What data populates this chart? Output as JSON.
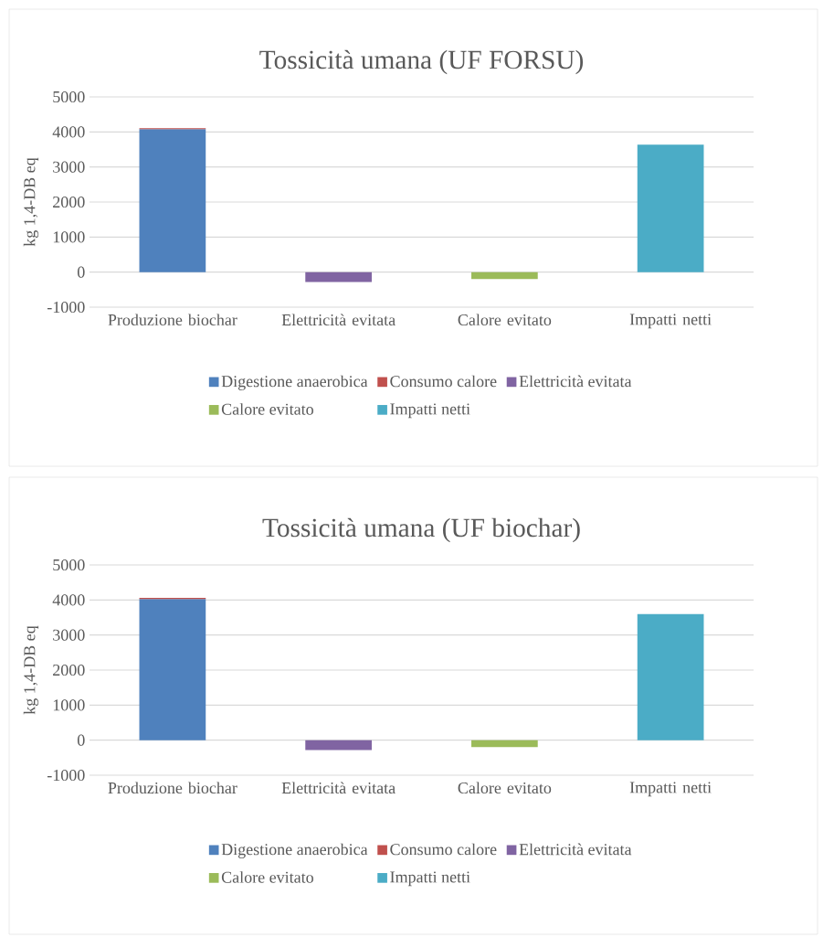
{
  "chart_data": [
    {
      "type": "bar",
      "stacked": true,
      "title": "Tossicità umana (UF FORSU)",
      "ylabel": "kg 1,4-DB eq",
      "categories": [
        "Produzione biochar",
        "Elettricità evitata",
        "Calore evitato",
        "Impatti netti"
      ],
      "ylim": [
        -1000,
        5000
      ],
      "yticks": [
        -1000,
        0,
        1000,
        2000,
        3000,
        4000,
        5000
      ],
      "grid": "y",
      "legend": "bottom",
      "series": [
        {
          "name": "Digestione anaerobica",
          "color": "#4f81bd",
          "values": [
            4080,
            null,
            null,
            null
          ]
        },
        {
          "name": "Consumo calore",
          "color": "#c0504d",
          "values": [
            30,
            null,
            null,
            null
          ]
        },
        {
          "name": "Elettricità evitata",
          "color": "#8064a2",
          "values": [
            null,
            -280,
            null,
            null
          ]
        },
        {
          "name": "Calore evitato",
          "color": "#9bbb59",
          "values": [
            null,
            null,
            -200,
            null
          ]
        },
        {
          "name": "Impatti netti",
          "color": "#4bacc6",
          "values": [
            null,
            null,
            null,
            3640
          ]
        }
      ]
    },
    {
      "type": "bar",
      "stacked": true,
      "title": "Tossicità umana (UF biochar)",
      "ylabel": "kg 1,4-DB eq",
      "categories": [
        "Produzione biochar",
        "Elettricità evitata",
        "Calore evitato",
        "Impatti netti"
      ],
      "ylim": [
        -1000,
        5000
      ],
      "yticks": [
        -1000,
        0,
        1000,
        2000,
        3000,
        4000,
        5000
      ],
      "grid": "y",
      "legend": "bottom",
      "series": [
        {
          "name": "Digestione anaerobica",
          "color": "#4f81bd",
          "values": [
            4030,
            null,
            null,
            null
          ]
        },
        {
          "name": "Consumo calore",
          "color": "#c0504d",
          "values": [
            30,
            null,
            null,
            null
          ]
        },
        {
          "name": "Elettricità evitata",
          "color": "#8064a2",
          "values": [
            null,
            -280,
            null,
            null
          ]
        },
        {
          "name": "Calore evitato",
          "color": "#9bbb59",
          "values": [
            null,
            null,
            -200,
            null
          ]
        },
        {
          "name": "Impatti netti",
          "color": "#4bacc6",
          "values": [
            null,
            null,
            null,
            3600
          ]
        }
      ]
    }
  ]
}
